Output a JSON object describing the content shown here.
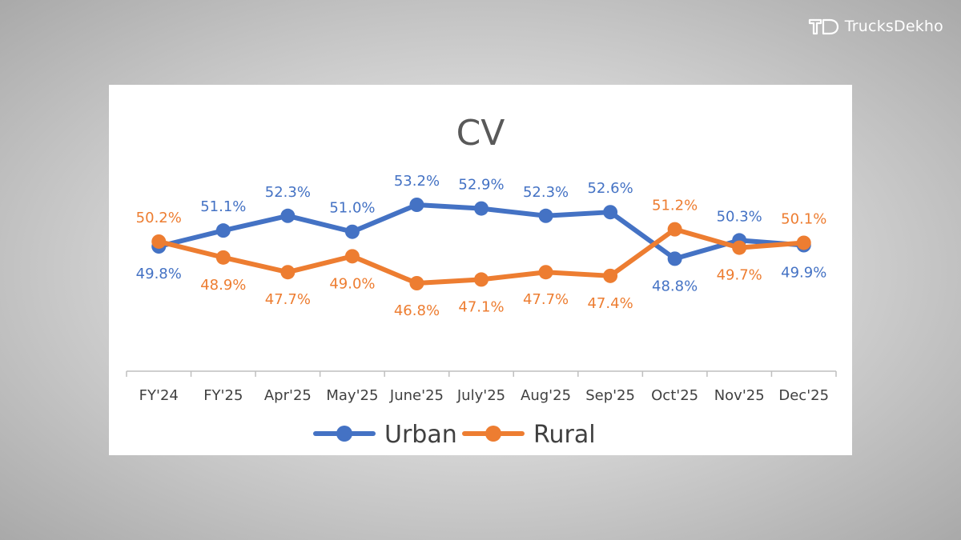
{
  "brand": {
    "name": "TrucksDekho",
    "icon": "trucksdekho-logo-icon"
  },
  "chart_data": {
    "type": "line",
    "title": "CV",
    "xlabel": "",
    "ylabel": "",
    "grid": false,
    "legend_position": "bottom",
    "categories": [
      "FY'24",
      "FY'25",
      "Apr'25",
      "May'25",
      "June'25",
      "July'25",
      "Aug'25",
      "Sep'25",
      "Oct'25",
      "Nov'25",
      "Dec'25"
    ],
    "ylim": [
      40,
      60
    ],
    "series": [
      {
        "name": "Urban",
        "color": "#4472c4",
        "values": [
          49.8,
          51.1,
          52.3,
          51.0,
          53.2,
          52.9,
          52.3,
          52.6,
          48.8,
          50.3,
          49.9
        ],
        "labels": [
          "49.8%",
          "51.1%",
          "52.3%",
          "51.0%",
          "53.2%",
          "52.9%",
          "52.3%",
          "52.6%",
          "48.8%",
          "50.3%",
          "49.9%"
        ]
      },
      {
        "name": "Rural",
        "color": "#ed7d31",
        "values": [
          50.2,
          48.9,
          47.7,
          49.0,
          46.8,
          47.1,
          47.7,
          47.4,
          51.2,
          49.7,
          50.1
        ],
        "labels": [
          "50.2%",
          "48.9%",
          "47.7%",
          "49.0%",
          "46.8%",
          "47.1%",
          "47.7%",
          "47.4%",
          "51.2%",
          "49.7%",
          "50.1%"
        ]
      }
    ]
  }
}
